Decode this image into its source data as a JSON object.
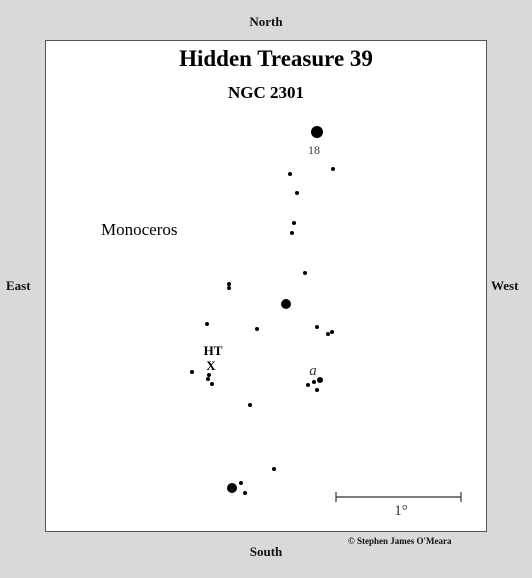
{
  "directions": {
    "north": "North",
    "south": "South",
    "east": "East",
    "west": "West"
  },
  "title": "Hidden Treasure 39",
  "subtitle": "NGC 2301",
  "constellation": "Monoceros",
  "labels": {
    "star_18": "18",
    "alpha": "a",
    "target_line1": "HT",
    "target_line2": "X"
  },
  "scale": "1°",
  "credit": "© Stephen James O'Meara",
  "colors": {
    "frame": "#d9d9d9",
    "chart_bg": "#ffffff",
    "star": "#000000"
  }
}
